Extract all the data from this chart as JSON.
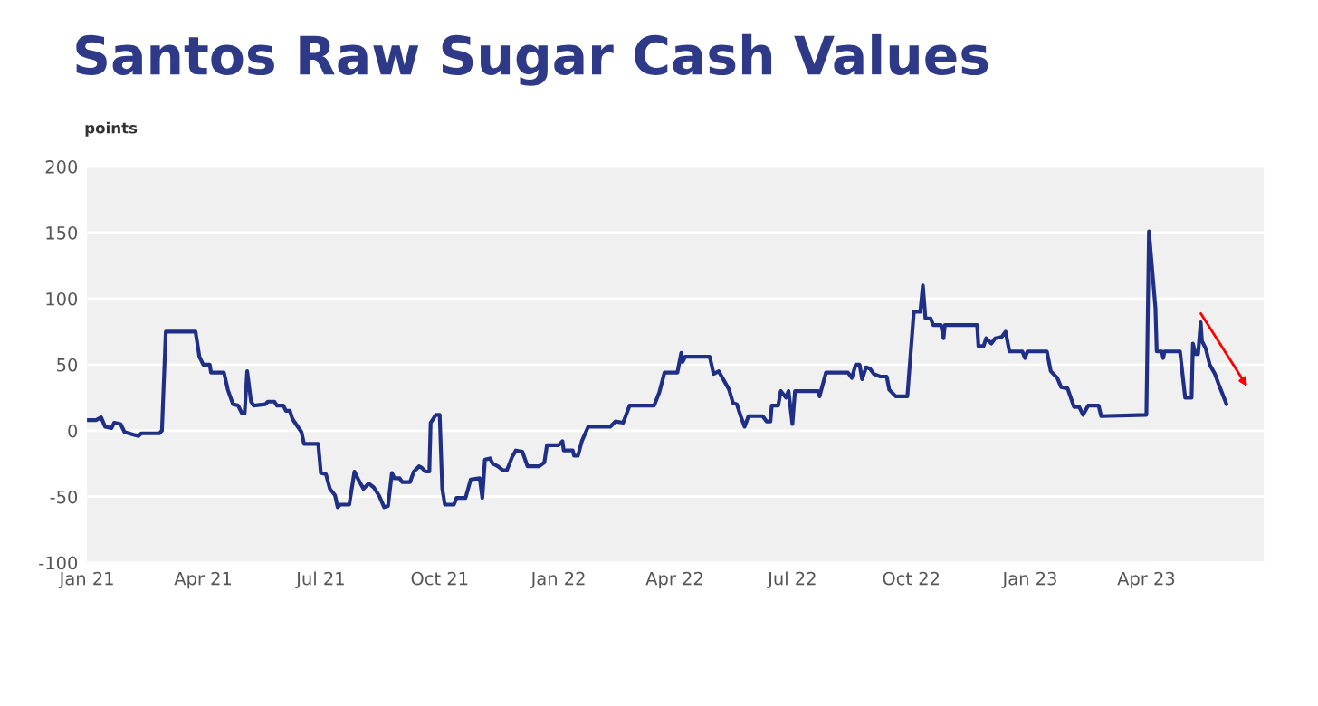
{
  "chart_data": {
    "type": "line",
    "title": "Santos Raw Sugar Cash Values",
    "ylabel": "points",
    "x": [
      "2021-01-01",
      "2021-01-08",
      "2021-01-12",
      "2021-01-15",
      "2021-01-20",
      "2021-01-22",
      "2021-01-27",
      "2021-01-30",
      "2021-02-06",
      "2021-02-10",
      "2021-02-12",
      "2021-02-26",
      "2021-02-28",
      "2021-03-03",
      "2021-03-26",
      "2021-03-29",
      "2021-04-01",
      "2021-04-06",
      "2021-04-07",
      "2021-04-17",
      "2021-04-20",
      "2021-04-24",
      "2021-04-28",
      "2021-05-01",
      "2021-05-03",
      "2021-05-05",
      "2021-05-08",
      "2021-05-10",
      "2021-05-19",
      "2021-05-21",
      "2021-05-26",
      "2021-05-28",
      "2021-06-02",
      "2021-06-04",
      "2021-06-07",
      "2021-06-09",
      "2021-06-11",
      "2021-06-16",
      "2021-06-18",
      "2021-06-29",
      "2021-07-01",
      "2021-07-05",
      "2021-07-08",
      "2021-07-12",
      "2021-07-14",
      "2021-07-16",
      "2021-07-23",
      "2021-07-27",
      "2021-07-30",
      "2021-08-03",
      "2021-08-07",
      "2021-08-11",
      "2021-08-15",
      "2021-08-19",
      "2021-08-22",
      "2021-08-25",
      "2021-08-27",
      "2021-08-31",
      "2021-09-02",
      "2021-09-08",
      "2021-09-11",
      "2021-09-15",
      "2021-09-17",
      "2021-09-20",
      "2021-09-23",
      "2021-09-24",
      "2021-09-28",
      "2021-10-01",
      "2021-10-03",
      "2021-10-05",
      "2021-10-12",
      "2021-10-14",
      "2021-10-21",
      "2021-10-25",
      "2021-11-01",
      "2021-11-03",
      "2021-11-05",
      "2021-11-09",
      "2021-11-11",
      "2021-11-15",
      "2021-11-19",
      "2021-11-22",
      "2021-11-26",
      "2021-11-29",
      "2021-12-04",
      "2021-12-08",
      "2021-12-17",
      "2021-12-21",
      "2021-12-23",
      "2022-01-01",
      "2022-01-04",
      "2022-01-05",
      "2022-01-12",
      "2022-01-13",
      "2022-01-16",
      "2022-01-19",
      "2022-01-24",
      "2022-02-10",
      "2022-02-14",
      "2022-02-20",
      "2022-02-25",
      "2022-03-16",
      "2022-03-20",
      "2022-03-24",
      "2022-04-03",
      "2022-04-06",
      "2022-04-07",
      "2022-04-09",
      "2022-04-28",
      "2022-05-01",
      "2022-05-05",
      "2022-05-09",
      "2022-05-13",
      "2022-05-16",
      "2022-05-19",
      "2022-05-22",
      "2022-05-25",
      "2022-05-28",
      "2022-06-08",
      "2022-06-11",
      "2022-06-14",
      "2022-06-15",
      "2022-06-20",
      "2022-06-22",
      "2022-06-26",
      "2022-06-28",
      "2022-07-01",
      "2022-07-03",
      "2022-07-21",
      "2022-07-22",
      "2022-07-27",
      "2022-08-13",
      "2022-08-16",
      "2022-08-19",
      "2022-08-22",
      "2022-08-24",
      "2022-08-27",
      "2022-08-30",
      "2022-09-02",
      "2022-09-07",
      "2022-09-12",
      "2022-09-14",
      "2022-09-19",
      "2022-09-28",
      "2022-10-03",
      "2022-10-08",
      "2022-10-10",
      "2022-10-12",
      "2022-10-16",
      "2022-10-18",
      "2022-10-24",
      "2022-10-26",
      "2022-10-27",
      "2022-11-21",
      "2022-11-22",
      "2022-11-26",
      "2022-11-28",
      "2022-12-02",
      "2022-12-05",
      "2022-12-10",
      "2022-12-13",
      "2022-12-16",
      "2022-12-26",
      "2022-12-28",
      "2022-12-30",
      "2023-01-14",
      "2023-01-17",
      "2023-01-22",
      "2023-01-25",
      "2023-01-30",
      "2023-02-04",
      "2023-02-08",
      "2023-02-11",
      "2023-02-15",
      "2023-02-23",
      "2023-02-25",
      "2023-04-01",
      "2023-04-03",
      "2023-04-08",
      "2023-04-09",
      "2023-04-13",
      "2023-04-14",
      "2023-04-15",
      "2023-04-27",
      "2023-05-01",
      "2023-05-06",
      "2023-05-07",
      "2023-05-09",
      "2023-05-11",
      "2023-05-13",
      "2023-05-14",
      "2023-05-17",
      "2023-05-20",
      "2023-05-24",
      "2023-05-27",
      "2023-05-31",
      "2023-06-02"
    ],
    "series": [
      {
        "color": "#1f2f86",
        "values": [
          8,
          8,
          10,
          3,
          2,
          6,
          5,
          -1,
          -3,
          -4,
          -2,
          -2,
          0,
          75,
          75,
          56,
          50,
          50,
          44,
          44,
          31,
          20,
          19,
          13,
          13,
          45,
          22,
          19,
          20,
          22,
          22,
          19,
          19,
          15,
          15,
          9,
          6,
          -1,
          -10,
          -10,
          -32,
          -33,
          -44,
          -49,
          -58,
          -56,
          -56,
          -31,
          -37,
          -44,
          -40,
          -43,
          -49,
          -58,
          -57,
          -32,
          -36,
          -36,
          -39,
          -39,
          -31,
          -27,
          -28,
          -31,
          -31,
          6,
          12,
          12,
          -44,
          -56,
          -56,
          -51,
          -51,
          -37,
          -36,
          -51,
          -22,
          -21,
          -25,
          -27,
          -30,
          -30,
          -20,
          -15,
          -16,
          -27,
          -27,
          -24,
          -11,
          -11,
          -8,
          -15,
          -15,
          -19,
          -19,
          -8,
          3,
          3,
          7,
          6,
          19,
          19,
          29,
          44,
          44,
          59,
          52,
          56,
          56,
          43,
          45,
          38,
          31,
          21,
          20,
          11,
          3,
          11,
          11,
          7,
          7,
          19,
          19,
          30,
          25,
          30,
          5,
          30,
          30,
          26,
          44,
          44,
          40,
          50,
          50,
          39,
          48,
          47,
          43,
          41,
          41,
          31,
          26,
          26,
          90,
          90,
          110,
          85,
          85,
          80,
          80,
          70,
          80,
          80,
          64,
          64,
          70,
          66,
          70,
          71,
          75,
          60,
          60,
          55,
          60,
          60,
          45,
          40,
          33,
          32,
          18,
          18,
          12,
          19,
          19,
          11,
          12,
          151,
          93,
          60,
          60,
          55,
          60,
          60,
          25,
          25,
          66,
          58,
          58,
          82,
          68,
          62,
          50,
          43,
          35,
          25,
          20
        ]
      }
    ],
    "xlim": [
      "2021-01-01",
      "2023-07-01"
    ],
    "xticks": [
      {
        "value": "2021-01-01",
        "label": "Jan 21"
      },
      {
        "value": "2021-04-01",
        "label": "Apr 21"
      },
      {
        "value": "2021-07-01",
        "label": "Jul 21"
      },
      {
        "value": "2021-10-01",
        "label": "Oct 21"
      },
      {
        "value": "2022-01-01",
        "label": "Jan 22"
      },
      {
        "value": "2022-04-01",
        "label": "Apr 22"
      },
      {
        "value": "2022-07-01",
        "label": "Jul 22"
      },
      {
        "value": "2022-10-01",
        "label": "Oct 22"
      },
      {
        "value": "2023-01-01",
        "label": "Jan 23"
      },
      {
        "value": "2023-04-01",
        "label": "Apr 23"
      }
    ],
    "ylim": [
      -100,
      200
    ],
    "yticks": [
      -100,
      -50,
      0,
      50,
      100,
      150,
      200
    ],
    "grid": "y"
  }
}
